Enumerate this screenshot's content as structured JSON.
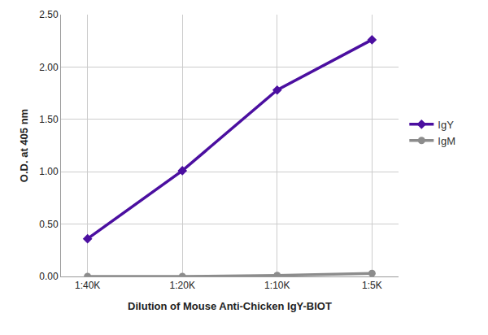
{
  "chart_data": {
    "type": "line",
    "x_label": "Dilution of Mouse Anti-Chicken IgY-BIOT",
    "y_label": "O.D. at 405 nm",
    "categories": [
      "1:40K",
      "1:20K",
      "1:10K",
      "1:5K"
    ],
    "series": [
      {
        "name": "IgY",
        "color": "#4b0fa0",
        "marker": "diamond",
        "values": [
          0.36,
          1.01,
          1.78,
          2.26
        ]
      },
      {
        "name": "IgM",
        "color": "#8c8c8c",
        "marker": "circle",
        "values": [
          0.0,
          0.0,
          0.01,
          0.03
        ]
      }
    ],
    "ylim": [
      0,
      2.5
    ],
    "yticks": [
      {
        "value": 0,
        "label": "0.00"
      },
      {
        "value": 0.5,
        "label": "0.50"
      },
      {
        "value": 1,
        "label": "1.00"
      },
      {
        "value": 1.5,
        "label": "1.50"
      },
      {
        "value": 2,
        "label": "2.00"
      },
      {
        "value": 2.5,
        "label": "2.50"
      }
    ],
    "grid": true,
    "legend": "right"
  }
}
